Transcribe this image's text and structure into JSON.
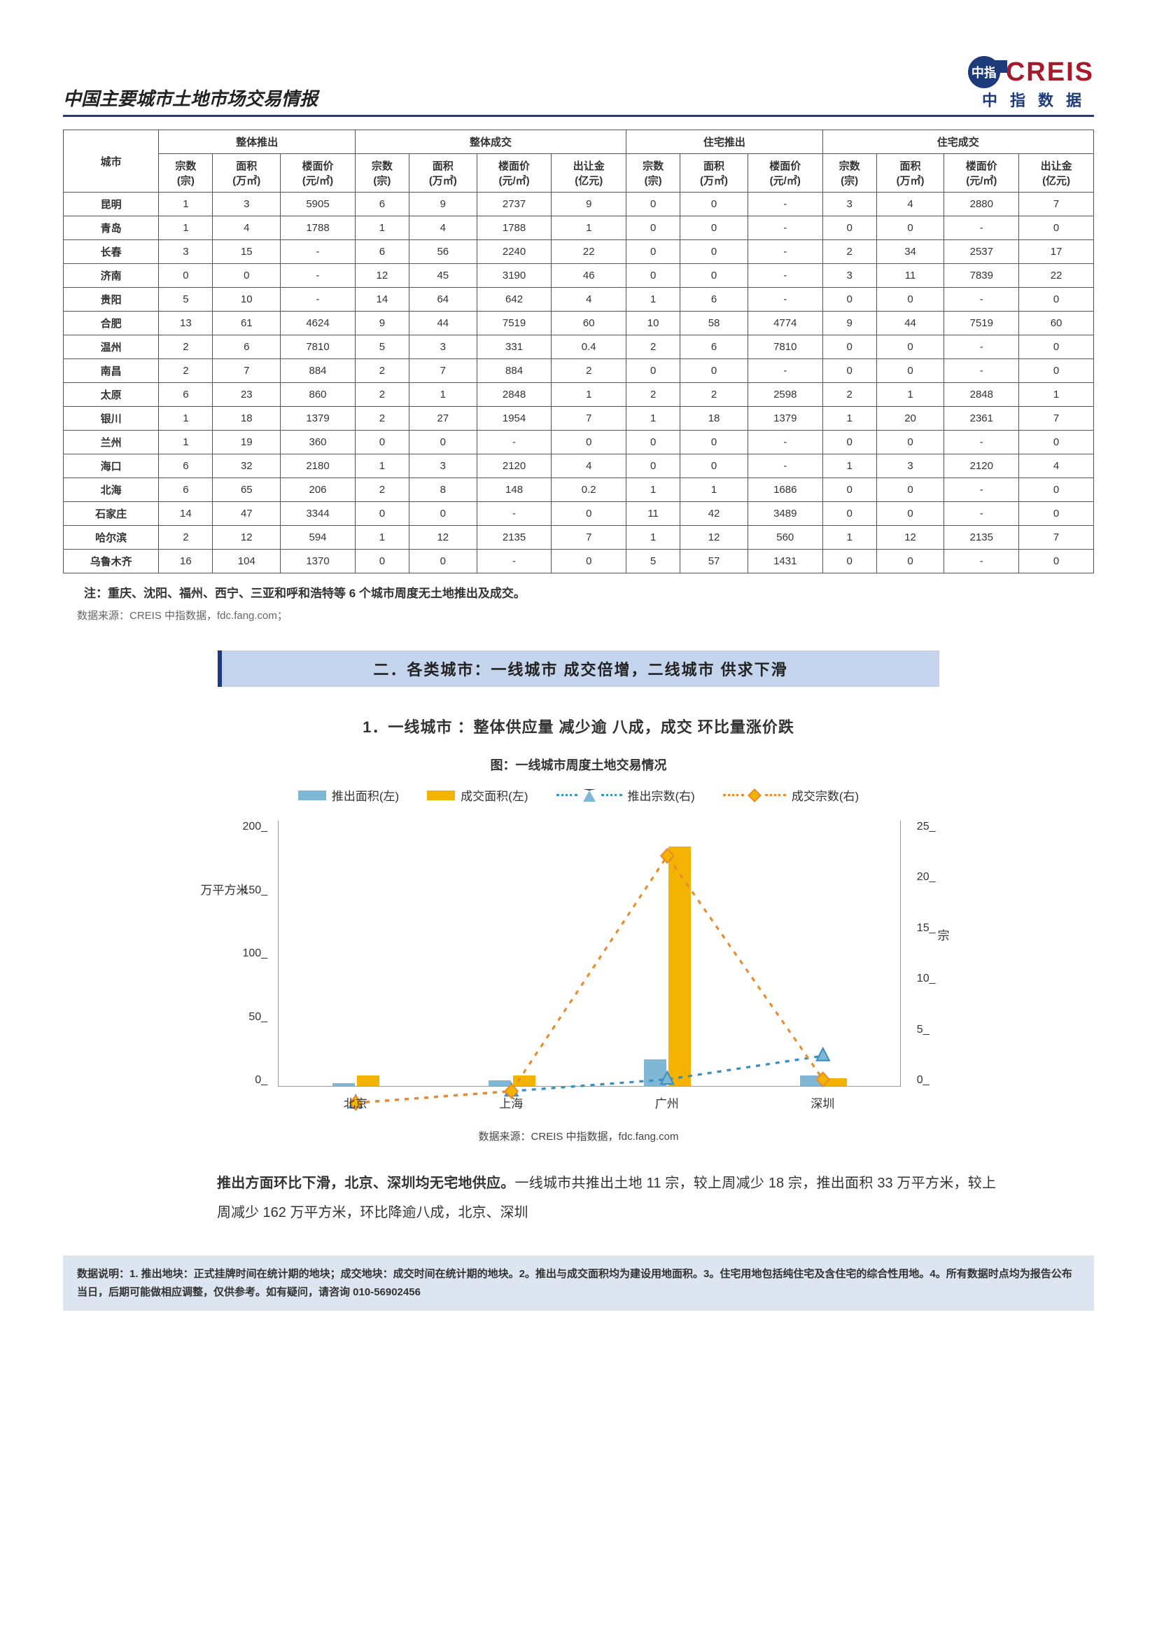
{
  "header": {
    "title": "中国主要城市土地市场交易情报",
    "logo_text": "CREIS",
    "logo_sub": "中指数据",
    "logo_badge": "中指"
  },
  "table": {
    "col_groups": [
      "整体推出",
      "整体成交",
      "住宅推出",
      "住宅成交"
    ],
    "city_label": "城市",
    "sub_headers": {
      "zong": "宗数\n(宗)",
      "mianji": "面积\n(万㎡)",
      "loumian": "楼面价\n(元/㎡)",
      "churang": "出让金\n(亿元)"
    },
    "rows": [
      {
        "city": "昆明",
        "a": [
          "1",
          "3",
          "5905"
        ],
        "b": [
          "6",
          "9",
          "2737",
          "9"
        ],
        "c": [
          "0",
          "0",
          "-"
        ],
        "d": [
          "3",
          "4",
          "2880",
          "7"
        ]
      },
      {
        "city": "青岛",
        "a": [
          "1",
          "4",
          "1788"
        ],
        "b": [
          "1",
          "4",
          "1788",
          "1"
        ],
        "c": [
          "0",
          "0",
          "-"
        ],
        "d": [
          "0",
          "0",
          "-",
          "0"
        ]
      },
      {
        "city": "长春",
        "a": [
          "3",
          "15",
          "-"
        ],
        "b": [
          "6",
          "56",
          "2240",
          "22"
        ],
        "c": [
          "0",
          "0",
          "-"
        ],
        "d": [
          "2",
          "34",
          "2537",
          "17"
        ]
      },
      {
        "city": "济南",
        "a": [
          "0",
          "0",
          "-"
        ],
        "b": [
          "12",
          "45",
          "3190",
          "46"
        ],
        "c": [
          "0",
          "0",
          "-"
        ],
        "d": [
          "3",
          "11",
          "7839",
          "22"
        ]
      },
      {
        "city": "贵阳",
        "a": [
          "5",
          "10",
          "-"
        ],
        "b": [
          "14",
          "64",
          "642",
          "4"
        ],
        "c": [
          "1",
          "6",
          "-"
        ],
        "d": [
          "0",
          "0",
          "-",
          "0"
        ]
      },
      {
        "city": "合肥",
        "a": [
          "13",
          "61",
          "4624"
        ],
        "b": [
          "9",
          "44",
          "7519",
          "60"
        ],
        "c": [
          "10",
          "58",
          "4774"
        ],
        "d": [
          "9",
          "44",
          "7519",
          "60"
        ]
      },
      {
        "city": "温州",
        "a": [
          "2",
          "6",
          "7810"
        ],
        "b": [
          "5",
          "3",
          "331",
          "0.4"
        ],
        "c": [
          "2",
          "6",
          "7810"
        ],
        "d": [
          "0",
          "0",
          "-",
          "0"
        ]
      },
      {
        "city": "南昌",
        "a": [
          "2",
          "7",
          "884"
        ],
        "b": [
          "2",
          "7",
          "884",
          "2"
        ],
        "c": [
          "0",
          "0",
          "-"
        ],
        "d": [
          "0",
          "0",
          "-",
          "0"
        ]
      },
      {
        "city": "太原",
        "a": [
          "6",
          "23",
          "860"
        ],
        "b": [
          "2",
          "1",
          "2848",
          "1"
        ],
        "c": [
          "2",
          "2",
          "2598"
        ],
        "d": [
          "2",
          "1",
          "2848",
          "1"
        ]
      },
      {
        "city": "银川",
        "a": [
          "1",
          "18",
          "1379"
        ],
        "b": [
          "2",
          "27",
          "1954",
          "7"
        ],
        "c": [
          "1",
          "18",
          "1379"
        ],
        "d": [
          "1",
          "20",
          "2361",
          "7"
        ]
      },
      {
        "city": "兰州",
        "a": [
          "1",
          "19",
          "360"
        ],
        "b": [
          "0",
          "0",
          "-",
          "0"
        ],
        "c": [
          "0",
          "0",
          "-"
        ],
        "d": [
          "0",
          "0",
          "-",
          "0"
        ]
      },
      {
        "city": "海口",
        "a": [
          "6",
          "32",
          "2180"
        ],
        "b": [
          "1",
          "3",
          "2120",
          "4"
        ],
        "c": [
          "0",
          "0",
          "-"
        ],
        "d": [
          "1",
          "3",
          "2120",
          "4"
        ]
      },
      {
        "city": "北海",
        "a": [
          "6",
          "65",
          "206"
        ],
        "b": [
          "2",
          "8",
          "148",
          "0.2"
        ],
        "c": [
          "1",
          "1",
          "1686"
        ],
        "d": [
          "0",
          "0",
          "-",
          "0"
        ]
      },
      {
        "city": "石家庄",
        "a": [
          "14",
          "47",
          "3344"
        ],
        "b": [
          "0",
          "0",
          "-",
          "0"
        ],
        "c": [
          "11",
          "42",
          "3489"
        ],
        "d": [
          "0",
          "0",
          "-",
          "0"
        ]
      },
      {
        "city": "哈尔滨",
        "a": [
          "2",
          "12",
          "594"
        ],
        "b": [
          "1",
          "12",
          "2135",
          "7"
        ],
        "c": [
          "1",
          "12",
          "560"
        ],
        "d": [
          "1",
          "12",
          "2135",
          "7"
        ]
      },
      {
        "city": "乌鲁木齐",
        "a": [
          "16",
          "104",
          "1370"
        ],
        "b": [
          "0",
          "0",
          "-",
          "0"
        ],
        "c": [
          "5",
          "57",
          "1431"
        ],
        "d": [
          "0",
          "0",
          "-",
          "0"
        ]
      }
    ],
    "note": "注：重庆、沈阳、福州、西宁、三亚和呼和浩特等 6 个城市周度无土地推出及成交。",
    "source": "数据来源：CREIS 中指数据，fdc.fang.com；"
  },
  "section": {
    "banner": "二．各类城市：一线城市 成交倍增，二线城市 供求下滑",
    "sub1": "1．一线城市 ：整体供应量 减少逾 八成，成交 环比量涨价跌"
  },
  "chart": {
    "title": "图：一线城市周度土地交易情况",
    "legend": {
      "bar1": "推出面积(左)",
      "bar2": "成交面积(左)",
      "line1": "推出宗数(右)",
      "line2": "成交宗数(右)"
    },
    "colors": {
      "bar1": "#7fb8d6",
      "bar2": "#f4b300",
      "line1": "#3a8fc2",
      "line2": "#e88b2e",
      "line1_fill": "#7fb8d6",
      "line2_fill": "#f4b300"
    },
    "y_left": {
      "label": "万平方米",
      "ticks": [
        "200_",
        "150_",
        "100_",
        "50_",
        "0_"
      ],
      "max": 200
    },
    "y_right": {
      "label": "宗",
      "ticks": [
        "25_",
        "20_",
        "15_",
        "10_",
        "5_",
        "0_"
      ],
      "max": 25
    },
    "cities": [
      "北京",
      "上海",
      "广州",
      "深圳"
    ],
    "bar1_values": [
      2,
      4,
      20,
      8
    ],
    "bar2_values": [
      8,
      8,
      180,
      6
    ],
    "line1_values": [
      1,
      2,
      3,
      5
    ],
    "line2_values": [
      1,
      2,
      22,
      3
    ],
    "source": "数据来源：CREIS 中指数据，fdc.fang.com"
  },
  "paragraph": {
    "bold_lead": "推出方面环比下滑，北京、深圳均无宅地供应。",
    "rest": "一线城市共推出土地 11 宗，较上周减少 18 宗，推出面积 33 万平方米，较上周减少 162 万平方米，环比降逾八成，北京、深圳"
  },
  "footer": {
    "text": "数据说明：1. 推出地块：正式挂牌时间在统计期的地块；成交地块：成交时间在统计期的地块。2。推出与成交面积均为建设用地面积。3。住宅用地包括纯住宅及含住宅的综合性用地。4。所有数据时点均为报告公布当日，后期可能做相应调整，仅供参考。如有疑问，请咨询 010-56902456"
  }
}
